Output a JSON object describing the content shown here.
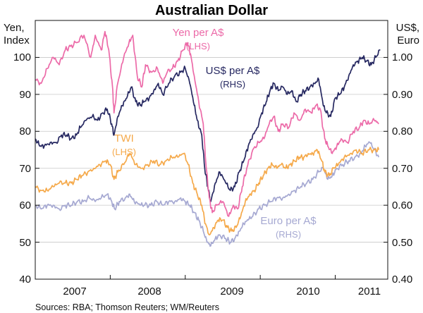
{
  "chart_data": {
    "type": "line",
    "title": "Australian Dollar",
    "left_axis": {
      "label_line1": "Yen,",
      "label_line2": "Index",
      "range": [
        40,
        110
      ],
      "ticks": [
        40,
        50,
        60,
        70,
        80,
        90,
        100
      ]
    },
    "right_axis": {
      "label_line1": "US$,",
      "label_line2": "Euro",
      "range": [
        0.4,
        1.1
      ],
      "ticks": [
        "0.40",
        "0.50",
        "0.60",
        "0.70",
        "0.80",
        "0.90",
        "1.00"
      ]
    },
    "x_axis": {
      "range": [
        2006.5,
        2011.2
      ],
      "labels": [
        "2007",
        "2008",
        "2009",
        "2010",
        "2011"
      ],
      "label_positions": [
        2007.0,
        2008.0,
        2009.0,
        2010.0,
        2011.1
      ],
      "year_boundaries": [
        2007.5,
        2008.5,
        2009.5,
        2010.5
      ]
    },
    "source": "Sources: RBA; Thomson Reuters; WM/Reuters",
    "series": [
      {
        "name": "Yen per A$",
        "side": "LHS",
        "label": "Yen per A$",
        "label_sub": "(LHS)",
        "color": "#ec6aa8",
        "points": [
          [
            2006.5,
            94
          ],
          [
            2006.58,
            93
          ],
          [
            2006.66,
            97
          ],
          [
            2006.74,
            100
          ],
          [
            2006.82,
            98
          ],
          [
            2006.9,
            102
          ],
          [
            2006.97,
            103
          ],
          [
            2007.05,
            104
          ],
          [
            2007.15,
            106
          ],
          [
            2007.24,
            100
          ],
          [
            2007.3,
            106
          ],
          [
            2007.38,
            102
          ],
          [
            2007.43,
            107
          ],
          [
            2007.48,
            102
          ],
          [
            2007.53,
            92
          ],
          [
            2007.55,
            85
          ],
          [
            2007.6,
            93
          ],
          [
            2007.68,
            100
          ],
          [
            2007.75,
            104
          ],
          [
            2007.8,
            106
          ],
          [
            2007.86,
            95
          ],
          [
            2007.92,
            92
          ],
          [
            2007.97,
            98
          ],
          [
            2008.05,
            96
          ],
          [
            2008.13,
            97
          ],
          [
            2008.2,
            93
          ],
          [
            2008.26,
            96
          ],
          [
            2008.33,
            97
          ],
          [
            2008.4,
            99
          ],
          [
            2008.47,
            102
          ],
          [
            2008.53,
            104
          ],
          [
            2008.57,
            101
          ],
          [
            2008.62,
            95
          ],
          [
            2008.68,
            88
          ],
          [
            2008.74,
            82
          ],
          [
            2008.78,
            70
          ],
          [
            2008.82,
            62
          ],
          [
            2008.86,
            58
          ],
          [
            2008.92,
            60
          ],
          [
            2009.0,
            61
          ],
          [
            2009.08,
            57
          ],
          [
            2009.14,
            60
          ],
          [
            2009.2,
            59
          ],
          [
            2009.26,
            65
          ],
          [
            2009.32,
            70
          ],
          [
            2009.4,
            75
          ],
          [
            2009.48,
            77
          ],
          [
            2009.55,
            78
          ],
          [
            2009.62,
            82
          ],
          [
            2009.68,
            84
          ],
          [
            2009.74,
            80
          ],
          [
            2009.8,
            82
          ],
          [
            2009.88,
            81
          ],
          [
            2009.95,
            85
          ],
          [
            2010.03,
            83
          ],
          [
            2010.1,
            86
          ],
          [
            2010.18,
            85
          ],
          [
            2010.24,
            87
          ],
          [
            2010.3,
            86
          ],
          [
            2010.36,
            78
          ],
          [
            2010.4,
            76
          ],
          [
            2010.46,
            74
          ],
          [
            2010.52,
            76
          ],
          [
            2010.58,
            78
          ],
          [
            2010.66,
            77
          ],
          [
            2010.74,
            80
          ],
          [
            2010.82,
            81
          ],
          [
            2010.88,
            83
          ],
          [
            2010.95,
            82
          ],
          [
            2011.02,
            83
          ],
          [
            2011.08,
            82
          ]
        ]
      },
      {
        "name": "US$ per A$",
        "side": "RHS",
        "label": "US$ per A$",
        "label_sub": "(RHS)",
        "color": "#262861",
        "points": [
          [
            2006.5,
            0.78
          ],
          [
            2006.56,
            0.76
          ],
          [
            2006.62,
            0.76
          ],
          [
            2006.7,
            0.77
          ],
          [
            2006.78,
            0.77
          ],
          [
            2006.85,
            0.79
          ],
          [
            2006.92,
            0.79
          ],
          [
            2006.98,
            0.78
          ],
          [
            2007.05,
            0.79
          ],
          [
            2007.1,
            0.81
          ],
          [
            2007.18,
            0.83
          ],
          [
            2007.26,
            0.84
          ],
          [
            2007.33,
            0.83
          ],
          [
            2007.4,
            0.85
          ],
          [
            2007.46,
            0.86
          ],
          [
            2007.52,
            0.82
          ],
          [
            2007.55,
            0.79
          ],
          [
            2007.6,
            0.84
          ],
          [
            2007.66,
            0.87
          ],
          [
            2007.72,
            0.89
          ],
          [
            2007.78,
            0.92
          ],
          [
            2007.84,
            0.88
          ],
          [
            2007.9,
            0.87
          ],
          [
            2007.95,
            0.88
          ],
          [
            2008.02,
            0.89
          ],
          [
            2008.08,
            0.91
          ],
          [
            2008.14,
            0.93
          ],
          [
            2008.2,
            0.9
          ],
          [
            2008.28,
            0.93
          ],
          [
            2008.36,
            0.95
          ],
          [
            2008.44,
            0.96
          ],
          [
            2008.5,
            0.97
          ],
          [
            2008.56,
            0.93
          ],
          [
            2008.62,
            0.87
          ],
          [
            2008.66,
            0.83
          ],
          [
            2008.72,
            0.79
          ],
          [
            2008.76,
            0.7
          ],
          [
            2008.8,
            0.65
          ],
          [
            2008.84,
            0.61
          ],
          [
            2008.9,
            0.66
          ],
          [
            2008.96,
            0.69
          ],
          [
            2009.04,
            0.66
          ],
          [
            2009.1,
            0.64
          ],
          [
            2009.16,
            0.65
          ],
          [
            2009.22,
            0.69
          ],
          [
            2009.28,
            0.72
          ],
          [
            2009.34,
            0.76
          ],
          [
            2009.4,
            0.79
          ],
          [
            2009.46,
            0.81
          ],
          [
            2009.52,
            0.85
          ],
          [
            2009.58,
            0.88
          ],
          [
            2009.63,
            0.91
          ],
          [
            2009.68,
            0.93
          ],
          [
            2009.74,
            0.91
          ],
          [
            2009.8,
            0.92
          ],
          [
            2009.86,
            0.9
          ],
          [
            2009.92,
            0.91
          ],
          [
            2009.98,
            0.88
          ],
          [
            2010.04,
            0.9
          ],
          [
            2010.1,
            0.91
          ],
          [
            2010.16,
            0.92
          ],
          [
            2010.22,
            0.93
          ],
          [
            2010.28,
            0.94
          ],
          [
            2010.34,
            0.87
          ],
          [
            2010.38,
            0.85
          ],
          [
            2010.44,
            0.84
          ],
          [
            2010.5,
            0.89
          ],
          [
            2010.56,
            0.9
          ],
          [
            2010.62,
            0.92
          ],
          [
            2010.68,
            0.95
          ],
          [
            2010.74,
            0.98
          ],
          [
            2010.8,
            0.99
          ],
          [
            2010.86,
            1.0
          ],
          [
            2010.92,
            0.99
          ],
          [
            2010.98,
            0.98
          ],
          [
            2011.04,
            1.0
          ],
          [
            2011.1,
            1.02
          ]
        ]
      },
      {
        "name": "TWI",
        "side": "LHS",
        "label": "TWI",
        "label_sub": "(LHS)",
        "color": "#f5a94a",
        "points": [
          [
            2006.5,
            65
          ],
          [
            2006.58,
            64
          ],
          [
            2006.66,
            64
          ],
          [
            2006.74,
            65
          ],
          [
            2006.82,
            66
          ],
          [
            2006.9,
            66
          ],
          [
            2006.98,
            66
          ],
          [
            2007.05,
            67
          ],
          [
            2007.12,
            68
          ],
          [
            2007.2,
            69
          ],
          [
            2007.28,
            70
          ],
          [
            2007.36,
            71
          ],
          [
            2007.44,
            72
          ],
          [
            2007.5,
            71
          ],
          [
            2007.55,
            67
          ],
          [
            2007.6,
            69
          ],
          [
            2007.68,
            71
          ],
          [
            2007.76,
            74
          ],
          [
            2007.84,
            71
          ],
          [
            2007.92,
            70
          ],
          [
            2008.0,
            71
          ],
          [
            2008.08,
            72
          ],
          [
            2008.16,
            71
          ],
          [
            2008.24,
            72
          ],
          [
            2008.32,
            73
          ],
          [
            2008.4,
            73
          ],
          [
            2008.48,
            74
          ],
          [
            2008.54,
            71
          ],
          [
            2008.6,
            66
          ],
          [
            2008.66,
            63
          ],
          [
            2008.72,
            60
          ],
          [
            2008.77,
            55
          ],
          [
            2008.82,
            52
          ],
          [
            2008.88,
            54
          ],
          [
            2008.94,
            56
          ],
          [
            2009.0,
            56
          ],
          [
            2009.06,
            54
          ],
          [
            2009.12,
            53
          ],
          [
            2009.18,
            54
          ],
          [
            2009.24,
            57
          ],
          [
            2009.3,
            61
          ],
          [
            2009.36,
            63
          ],
          [
            2009.42,
            64
          ],
          [
            2009.48,
            66
          ],
          [
            2009.54,
            68
          ],
          [
            2009.6,
            70
          ],
          [
            2009.66,
            71
          ],
          [
            2009.72,
            70
          ],
          [
            2009.78,
            71
          ],
          [
            2009.84,
            70
          ],
          [
            2009.9,
            71
          ],
          [
            2009.96,
            72
          ],
          [
            2010.02,
            73
          ],
          [
            2010.08,
            73
          ],
          [
            2010.14,
            74
          ],
          [
            2010.2,
            74
          ],
          [
            2010.26,
            75
          ],
          [
            2010.32,
            72
          ],
          [
            2010.36,
            69
          ],
          [
            2010.42,
            68
          ],
          [
            2010.48,
            70
          ],
          [
            2010.54,
            71
          ],
          [
            2010.62,
            73
          ],
          [
            2010.7,
            74
          ],
          [
            2010.78,
            75
          ],
          [
            2010.86,
            74
          ],
          [
            2010.94,
            75
          ],
          [
            2011.02,
            75
          ],
          [
            2011.08,
            75
          ]
        ]
      },
      {
        "name": "Euro per A$",
        "side": "RHS",
        "label": "Euro per A$",
        "label_sub": "(RHS)",
        "color": "#a6a9d2",
        "points": [
          [
            2006.5,
            0.6
          ],
          [
            2006.58,
            0.59
          ],
          [
            2006.66,
            0.6
          ],
          [
            2006.74,
            0.6
          ],
          [
            2006.82,
            0.59
          ],
          [
            2006.9,
            0.6
          ],
          [
            2006.98,
            0.6
          ],
          [
            2007.06,
            0.61
          ],
          [
            2007.14,
            0.61
          ],
          [
            2007.22,
            0.62
          ],
          [
            2007.3,
            0.61
          ],
          [
            2007.38,
            0.62
          ],
          [
            2007.46,
            0.63
          ],
          [
            2007.52,
            0.61
          ],
          [
            2007.56,
            0.59
          ],
          [
            2007.62,
            0.61
          ],
          [
            2007.7,
            0.62
          ],
          [
            2007.76,
            0.63
          ],
          [
            2007.82,
            0.61
          ],
          [
            2007.9,
            0.6
          ],
          [
            2007.96,
            0.6
          ],
          [
            2008.04,
            0.6
          ],
          [
            2008.12,
            0.61
          ],
          [
            2008.2,
            0.6
          ],
          [
            2008.28,
            0.61
          ],
          [
            2008.36,
            0.61
          ],
          [
            2008.44,
            0.62
          ],
          [
            2008.5,
            0.61
          ],
          [
            2008.56,
            0.6
          ],
          [
            2008.62,
            0.58
          ],
          [
            2008.68,
            0.56
          ],
          [
            2008.74,
            0.53
          ],
          [
            2008.79,
            0.5
          ],
          [
            2008.84,
            0.49
          ],
          [
            2008.9,
            0.51
          ],
          [
            2008.96,
            0.52
          ],
          [
            2009.04,
            0.51
          ],
          [
            2009.1,
            0.5
          ],
          [
            2009.16,
            0.51
          ],
          [
            2009.22,
            0.53
          ],
          [
            2009.28,
            0.55
          ],
          [
            2009.34,
            0.56
          ],
          [
            2009.4,
            0.57
          ],
          [
            2009.48,
            0.59
          ],
          [
            2009.56,
            0.6
          ],
          [
            2009.64,
            0.61
          ],
          [
            2009.72,
            0.62
          ],
          [
            2009.8,
            0.62
          ],
          [
            2009.88,
            0.63
          ],
          [
            2009.96,
            0.64
          ],
          [
            2010.04,
            0.65
          ],
          [
            2010.12,
            0.66
          ],
          [
            2010.2,
            0.67
          ],
          [
            2010.28,
            0.69
          ],
          [
            2010.34,
            0.7
          ],
          [
            2010.4,
            0.67
          ],
          [
            2010.46,
            0.68
          ],
          [
            2010.52,
            0.7
          ],
          [
            2010.6,
            0.71
          ],
          [
            2010.68,
            0.72
          ],
          [
            2010.76,
            0.73
          ],
          [
            2010.84,
            0.74
          ],
          [
            2010.9,
            0.76
          ],
          [
            2010.96,
            0.77
          ],
          [
            2011.02,
            0.75
          ],
          [
            2011.08,
            0.73
          ]
        ]
      }
    ]
  }
}
